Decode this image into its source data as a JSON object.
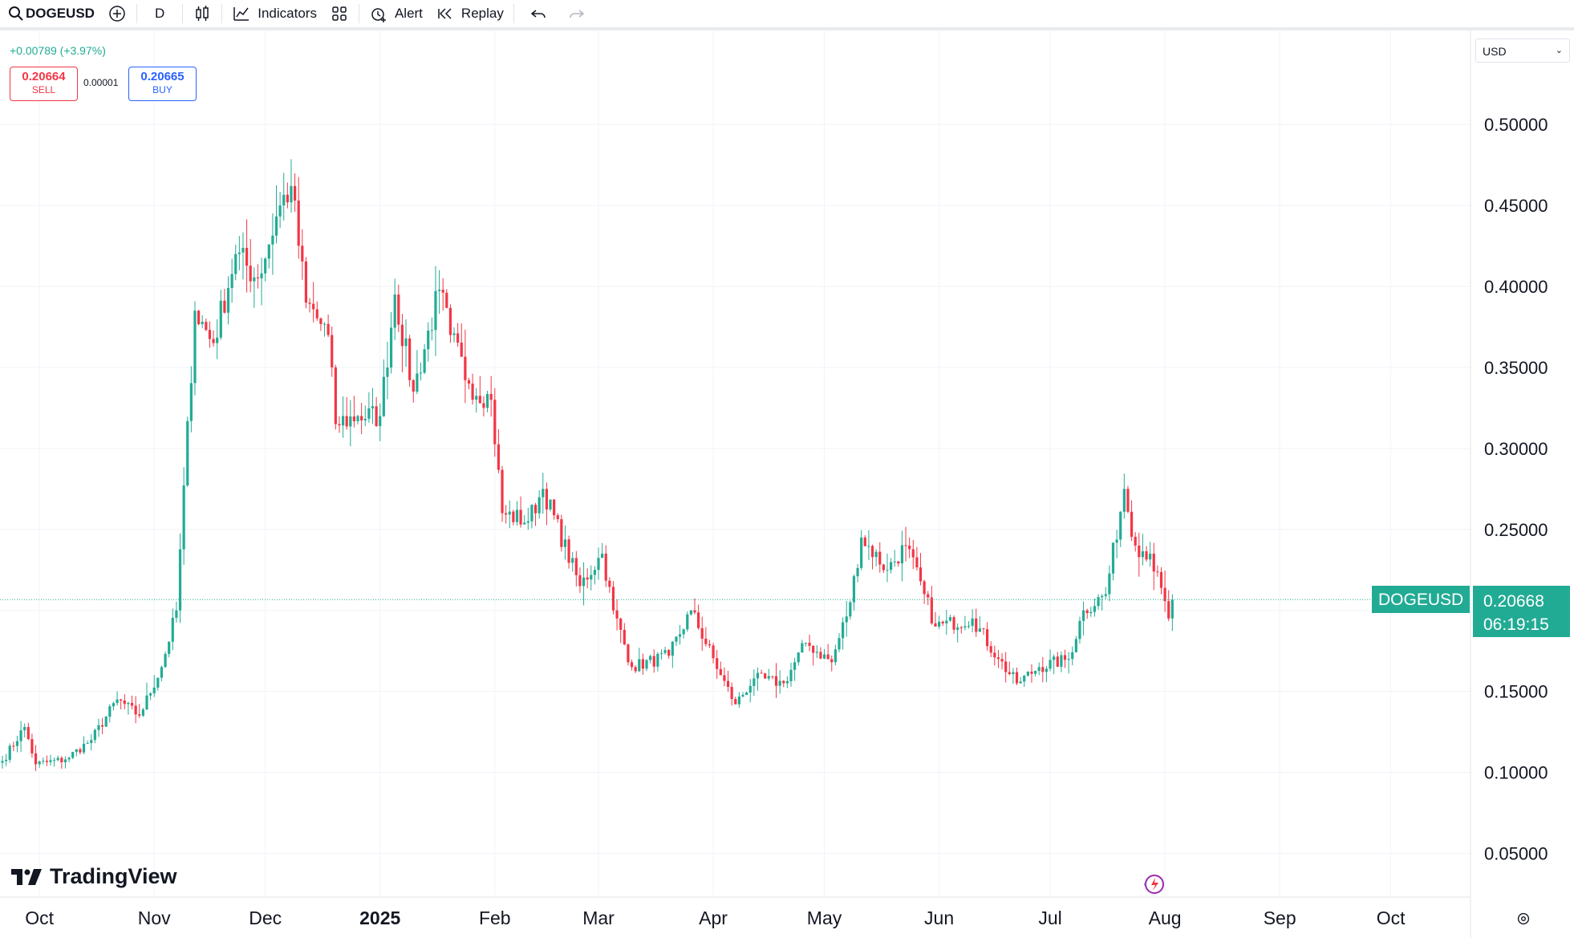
{
  "toolbar": {
    "symbol": "DOGEUSD",
    "interval": "D",
    "indicators_label": "Indicators",
    "alert_label": "Alert",
    "replay_label": "Replay"
  },
  "quote": {
    "change": "+0.00789 (+3.97%)",
    "sell_price": "0.20664",
    "sell_label": "SELL",
    "spread": "0.00001",
    "buy_price": "0.20665",
    "buy_label": "BUY",
    "currency": "USD",
    "last_price": "0.20668",
    "countdown": "06:19:15",
    "tag": "DOGEUSD"
  },
  "brand": "TradingView",
  "colors": {
    "up": "#22ab94",
    "down": "#f23645",
    "grid": "#f0f3fa",
    "accent": "#2962ff"
  },
  "chart_data": {
    "type": "candlestick",
    "symbol": "DOGEUSD",
    "interval": "D",
    "x_tick_labels": [
      "Oct",
      "Nov",
      "Dec",
      "2025",
      "Feb",
      "Mar",
      "Apr",
      "May",
      "Jun",
      "Jul",
      "Aug",
      "Sep",
      "Oct"
    ],
    "y_tick_labels": [
      "0.50000",
      "0.45000",
      "0.40000",
      "0.35000",
      "0.30000",
      "0.25000",
      "0.15000",
      "0.10000",
      "0.05000"
    ],
    "y_ticks": [
      0.5,
      0.45,
      0.4,
      0.35,
      0.3,
      0.25,
      0.15,
      0.1,
      0.05
    ],
    "ylim": [
      0.023,
      0.558
    ],
    "grid": true,
    "last_price": 0.20668,
    "series_anchors": [
      {
        "date": "Sep-21",
        "close": 0.107
      },
      {
        "date": "Sep-27",
        "close": 0.128
      },
      {
        "date": "Sep-30",
        "close": 0.105
      },
      {
        "date": "Oct-08",
        "close": 0.108
      },
      {
        "date": "Oct-15",
        "close": 0.12
      },
      {
        "date": "Oct-22",
        "close": 0.145
      },
      {
        "date": "Oct-28",
        "close": 0.135
      },
      {
        "date": "Nov-03",
        "close": 0.165
      },
      {
        "date": "Nov-07",
        "close": 0.2
      },
      {
        "date": "Nov-12",
        "close": 0.385
      },
      {
        "date": "Nov-17",
        "close": 0.365
      },
      {
        "date": "Nov-23",
        "close": 0.42
      },
      {
        "date": "Nov-29",
        "close": 0.405
      },
      {
        "date": "Dec-05",
        "close": 0.45
      },
      {
        "date": "Dec-08",
        "close": 0.462
      },
      {
        "date": "Dec-12",
        "close": 0.39
      },
      {
        "date": "Dec-18",
        "close": 0.37
      },
      {
        "date": "Dec-20",
        "close": 0.315
      },
      {
        "date": "Dec-26",
        "close": 0.32
      },
      {
        "date": "Jan-01",
        "close": 0.32
      },
      {
        "date": "Jan-05",
        "close": 0.395
      },
      {
        "date": "Jan-10",
        "close": 0.335
      },
      {
        "date": "Jan-17",
        "close": 0.398
      },
      {
        "date": "Jan-20",
        "close": 0.37
      },
      {
        "date": "Jan-25",
        "close": 0.34
      },
      {
        "date": "Jan-31",
        "close": 0.33
      },
      {
        "date": "Feb-03",
        "close": 0.26
      },
      {
        "date": "Feb-10",
        "close": 0.255
      },
      {
        "date": "Feb-14",
        "close": 0.275
      },
      {
        "date": "Feb-24",
        "close": 0.215
      },
      {
        "date": "Mar-02",
        "close": 0.235
      },
      {
        "date": "Mar-05",
        "close": 0.2
      },
      {
        "date": "Mar-10",
        "close": 0.165
      },
      {
        "date": "Mar-20",
        "close": 0.172
      },
      {
        "date": "Mar-26",
        "close": 0.2
      },
      {
        "date": "Apr-03",
        "close": 0.16
      },
      {
        "date": "Apr-07",
        "close": 0.142
      },
      {
        "date": "Apr-12",
        "close": 0.158
      },
      {
        "date": "Apr-20",
        "close": 0.155
      },
      {
        "date": "Apr-26",
        "close": 0.18
      },
      {
        "date": "May-03",
        "close": 0.168
      },
      {
        "date": "May-08",
        "close": 0.205
      },
      {
        "date": "May-11",
        "close": 0.245
      },
      {
        "date": "May-18",
        "close": 0.225
      },
      {
        "date": "May-23",
        "close": 0.24
      },
      {
        "date": "May-28",
        "close": 0.21
      },
      {
        "date": "May-31",
        "close": 0.19
      },
      {
        "date": "Jun-10",
        "close": 0.195
      },
      {
        "date": "Jun-17",
        "close": 0.17
      },
      {
        "date": "Jun-22",
        "close": 0.155
      },
      {
        "date": "Jun-28",
        "close": 0.165
      },
      {
        "date": "Jul-06",
        "close": 0.17
      },
      {
        "date": "Jul-10",
        "close": 0.2
      },
      {
        "date": "Jul-16",
        "close": 0.21
      },
      {
        "date": "Jul-21",
        "close": 0.275
      },
      {
        "date": "Jul-24",
        "close": 0.24
      },
      {
        "date": "Jul-28",
        "close": 0.235
      },
      {
        "date": "Aug-02",
        "close": 0.195
      },
      {
        "date": "Aug-03",
        "close": 0.20668
      }
    ]
  }
}
